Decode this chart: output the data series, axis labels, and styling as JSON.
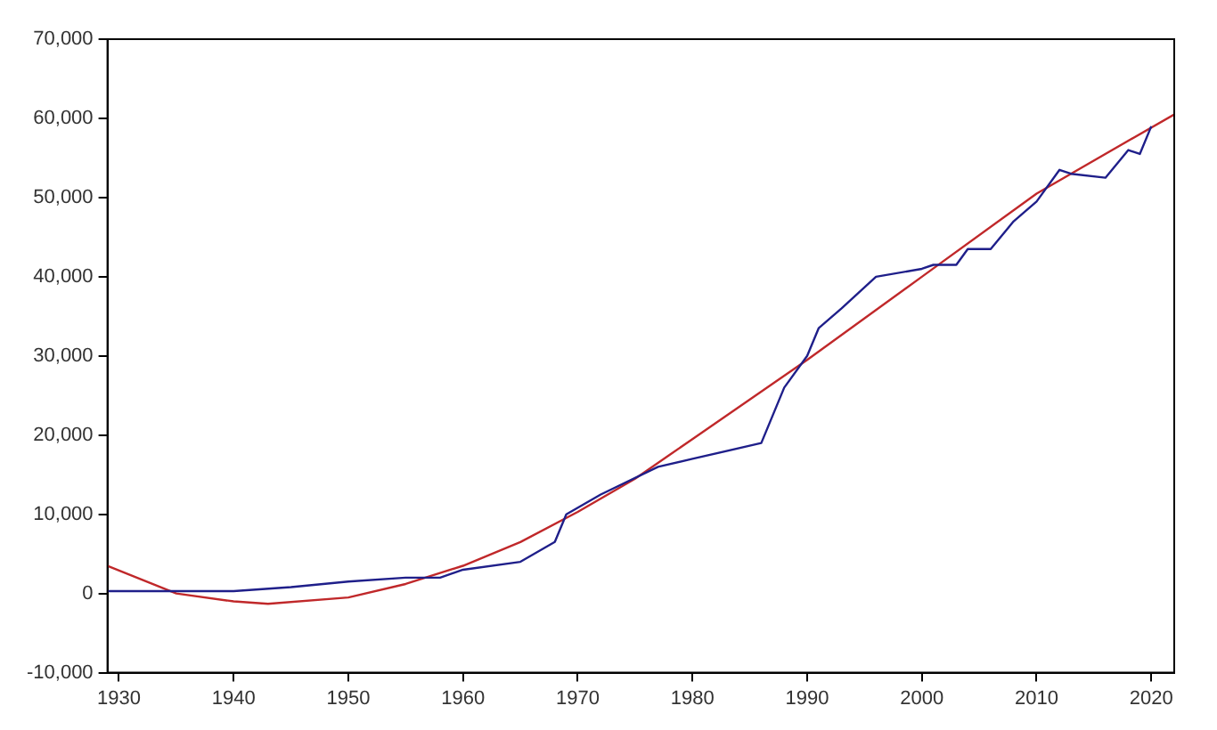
{
  "chart_data": {
    "type": "line",
    "xlim": [
      1929,
      2022
    ],
    "xticks": [
      1930,
      1940,
      1950,
      1960,
      1970,
      1980,
      1990,
      2000,
      2010,
      2020
    ],
    "ylim": [
      -10000,
      70000
    ],
    "yticks": [
      {
        "value": -10000,
        "label": "-10,000"
      },
      0,
      {
        "value": 10000,
        "label": "10,000"
      },
      {
        "value": 20000,
        "label": "20,000"
      },
      {
        "value": 30000,
        "label": "30,000"
      },
      {
        "value": 40000,
        "label": "40,000"
      },
      {
        "value": 50000,
        "label": "50,000"
      },
      {
        "value": 60000,
        "label": "60,000"
      },
      {
        "value": 70000,
        "label": "70,000"
      }
    ],
    "grid": false,
    "legend": false,
    "marker": "none",
    "line_style": "solid",
    "series": [
      {
        "color": "#1f1f8a",
        "x": [
          1929,
          1940,
          1945,
          1950,
          1955,
          1958,
          1960,
          1965,
          1968,
          1969,
          1972,
          1977,
          1980,
          1986,
          1988,
          1990,
          1991,
          1993,
          1996,
          2000,
          2001,
          2003,
          2004,
          2006,
          2008,
          2010,
          2012,
          2013,
          2016,
          2018,
          2019,
          2020
        ],
        "values": [
          300,
          300,
          800,
          1500,
          2000,
          2000,
          3000,
          4000,
          6500,
          10000,
          12500,
          16000,
          17000,
          19000,
          26000,
          30000,
          33500,
          36000,
          40000,
          41000,
          41500,
          41500,
          43500,
          43500,
          47000,
          49500,
          53500,
          53000,
          52500,
          56000,
          55500,
          59000
        ]
      },
      {
        "color": "#c0282a",
        "x": [
          1929,
          1935,
          1940,
          1943,
          1950,
          1955,
          1960,
          1965,
          1970,
          1975,
          1980,
          1985,
          1990,
          2000,
          2010,
          2022
        ],
        "values": [
          3500,
          0,
          -1000,
          -1300,
          -500,
          1200,
          3500,
          6500,
          10300,
          14500,
          19500,
          24500,
          29500,
          40000,
          50500,
          60500
        ]
      }
    ]
  }
}
